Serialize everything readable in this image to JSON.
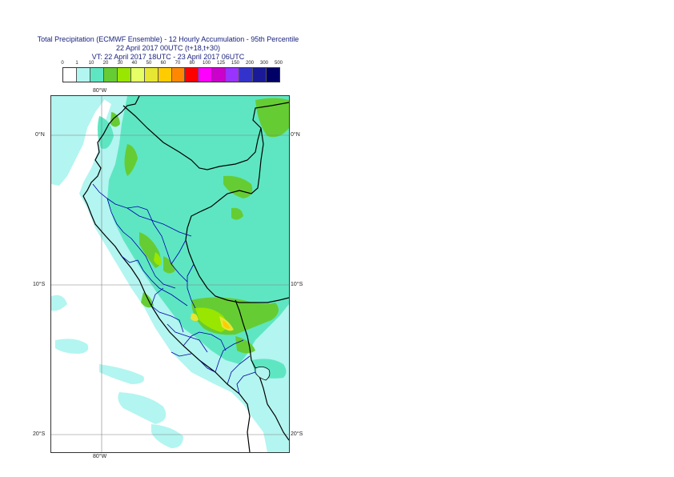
{
  "title": {
    "line1": "Total Precipitation (ECMWF Ensemble) - 12 Hourly Accumulation - 95th Percentile",
    "line2": "22 April 2017 00UTC (t+18,t+30)",
    "line3": "VT: 22 April 2017 18UTC - 23 April 2017 06UTC"
  },
  "legend": {
    "labels": [
      "0",
      "1",
      "10",
      "20",
      "30",
      "40",
      "50",
      "60",
      "70",
      "80",
      "100",
      "125",
      "150",
      "200",
      "300",
      "500"
    ],
    "colors": [
      "#ffffff",
      "#b3f5f0",
      "#5ee6c2",
      "#66cc33",
      "#99e600",
      "#e6ff66",
      "#e6e633",
      "#ffcc00",
      "#ff8800",
      "#ff0000",
      "#ff00ff",
      "#cc00cc",
      "#9933ff",
      "#3333cc",
      "#1a1a99",
      "#000066"
    ]
  },
  "map": {
    "lat_labels": [
      "0°N",
      "10°S",
      "20°S"
    ],
    "lon_labels": [
      "80°W"
    ],
    "colors": {
      "light_cyan": "#b3f5f0",
      "green_cyan": "#5ee6c2",
      "green": "#66cc33",
      "lime": "#99e600",
      "yellow": "#e6e633",
      "orange": "#ffcc00",
      "coast": "#000000",
      "borders": "#0000aa",
      "grid": "#808080"
    }
  }
}
